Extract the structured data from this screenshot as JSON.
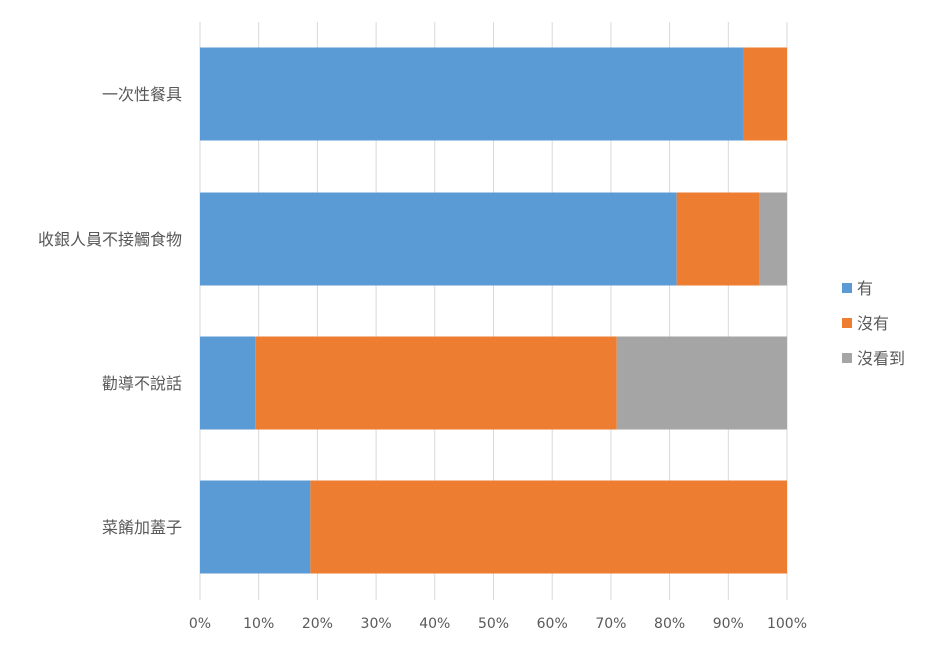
{
  "chart_data": {
    "type": "bar",
    "orientation": "horizontal",
    "stacked": "percent",
    "categories": [
      "一次性餐具",
      "收銀人員不接觸食物",
      "勸導不說話",
      "菜餚加蓋子"
    ],
    "series": [
      {
        "name": "有",
        "color": "#5B9BD5",
        "values": [
          92.5,
          81.2,
          9.4,
          18.8
        ]
      },
      {
        "name": "沒有",
        "color": "#ED7D31",
        "values": [
          7.5,
          14.1,
          61.6,
          81.2
        ]
      },
      {
        "name": "沒看到",
        "color": "#A5A5A5",
        "values": [
          0,
          4.7,
          29.0,
          0
        ]
      }
    ],
    "x_ticks": [
      "0%",
      "10%",
      "20%",
      "30%",
      "40%",
      "50%",
      "60%",
      "70%",
      "80%",
      "90%",
      "100%"
    ],
    "xlim": [
      0,
      100
    ],
    "grid": "vertical",
    "legend_position": "right",
    "gridline_color": "#D9D9D9"
  }
}
